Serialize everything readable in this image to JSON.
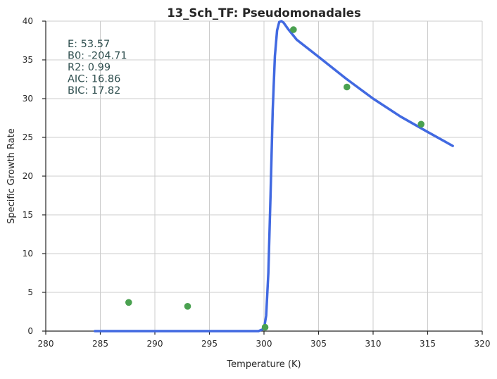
{
  "chart_data": {
    "type": "scatter",
    "title": "13_Sch_TF: Pseudomonadales",
    "xlabel": "Temperature (K)",
    "ylabel": "Specific Growth Rate",
    "xlim": [
      280,
      320
    ],
    "ylim": [
      0,
      40
    ],
    "x_ticks": [
      "280",
      "285",
      "290",
      "295",
      "300",
      "305",
      "310",
      "315",
      "320"
    ],
    "y_ticks": [
      "0",
      "5",
      "10",
      "15",
      "20",
      "25",
      "30",
      "35",
      "40"
    ],
    "grid": true,
    "observed": {
      "color": "#4aa150",
      "x": [
        287.6,
        293.0,
        300.1,
        302.7,
        307.6,
        314.4
      ],
      "y": [
        3.7,
        3.2,
        0.5,
        38.9,
        31.5,
        26.7
      ]
    },
    "fit": {
      "color": "#4169e1",
      "x": [
        284.5,
        296.0,
        299.5,
        300.0,
        300.2,
        300.4,
        300.6,
        300.8,
        301.0,
        301.2,
        301.4,
        301.6,
        301.8,
        302.2,
        303.0,
        305.0,
        307.5,
        310.0,
        312.5,
        315.0,
        317.3
      ],
      "y": [
        0,
        0,
        0,
        0.3,
        2.0,
        7.5,
        17.5,
        28.5,
        35.5,
        38.8,
        39.9,
        40.0,
        39.8,
        39.0,
        37.6,
        35.4,
        32.6,
        30.0,
        27.7,
        25.7,
        23.9
      ]
    },
    "annotations": [
      "E:  53.57",
      "B0:  -204.71",
      "R2:  0.99",
      "AIC: 16.86",
      "BIC: 17.82"
    ]
  }
}
